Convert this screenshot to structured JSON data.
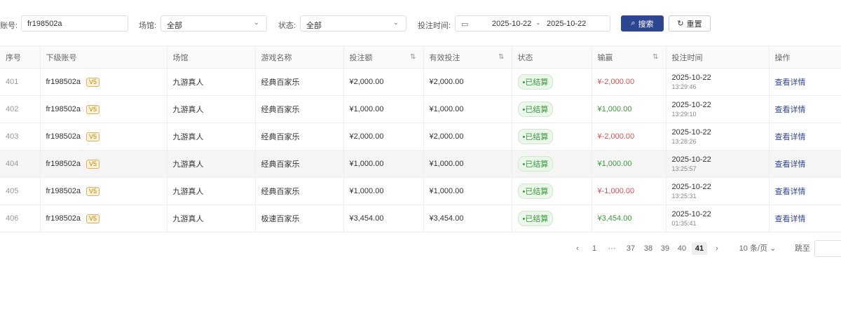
{
  "filters": {
    "account_label": "账号:",
    "account_value": "fr198502a",
    "venue_label": "场馆:",
    "venue_value": "全部",
    "status_label": "状态:",
    "status_value": "全部",
    "time_label": "投注时间:",
    "date_start": "2025-10-22",
    "date_sep": "-",
    "date_end": "2025-10-22",
    "search_label": "搜索",
    "reset_label": "重置"
  },
  "table": {
    "headers": [
      "序号",
      "下级账号",
      "场馆",
      "游戏名称",
      "投注额",
      "有效投注",
      "状态",
      "输赢",
      "投注时间",
      "操作"
    ],
    "rows": [
      {
        "idx": "401",
        "account": "fr198502a",
        "vip": "V5",
        "venue": "九游真人",
        "game": "经典百家乐",
        "bet": "¥2,000.00",
        "valid": "¥2,000.00",
        "status": "•已结算",
        "win": "¥-2,000.00",
        "win_sign": "neg",
        "date": "2025-10-22",
        "time": "13:29:46",
        "action": "查看详情"
      },
      {
        "idx": "402",
        "account": "fr198502a",
        "vip": "V5",
        "venue": "九游真人",
        "game": "经典百家乐",
        "bet": "¥1,000.00",
        "valid": "¥1,000.00",
        "status": "•已结算",
        "win": "¥1,000.00",
        "win_sign": "pos",
        "date": "2025-10-22",
        "time": "13:29:10",
        "action": "查看详情"
      },
      {
        "idx": "403",
        "account": "fr198502a",
        "vip": "V5",
        "venue": "九游真人",
        "game": "经典百家乐",
        "bet": "¥2,000.00",
        "valid": "¥2,000.00",
        "status": "•已结算",
        "win": "¥-2,000.00",
        "win_sign": "neg",
        "date": "2025-10-22",
        "time": "13:28:26",
        "action": "查看详情"
      },
      {
        "idx": "404",
        "account": "fr198502a",
        "vip": "V5",
        "venue": "九游真人",
        "game": "经典百家乐",
        "bet": "¥1,000.00",
        "valid": "¥1,000.00",
        "status": "•已结算",
        "win": "¥1,000.00",
        "win_sign": "pos",
        "date": "2025-10-22",
        "time": "13:25:57",
        "action": "查看详情"
      },
      {
        "idx": "405",
        "account": "fr198502a",
        "vip": "V5",
        "venue": "九游真人",
        "game": "经典百家乐",
        "bet": "¥1,000.00",
        "valid": "¥1,000.00",
        "status": "•已结算",
        "win": "¥-1,000.00",
        "win_sign": "neg",
        "date": "2025-10-22",
        "time": "13:25:31",
        "action": "查看详情"
      },
      {
        "idx": "406",
        "account": "fr198502a",
        "vip": "V5",
        "venue": "九游真人",
        "game": "极速百家乐",
        "bet": "¥3,454.00",
        "valid": "¥3,454.00",
        "status": "•已结算",
        "win": "¥3,454.00",
        "win_sign": "pos",
        "date": "2025-10-22",
        "time": "01:35:41",
        "action": "查看详情"
      }
    ]
  },
  "pagination": {
    "prev": "‹",
    "pages": [
      "1",
      "···",
      "37",
      "38",
      "39",
      "40",
      "41"
    ],
    "current": "41",
    "next": "›",
    "page_size": "10 条/页",
    "jump_label": "跳至"
  },
  "colors": {
    "primary": "#2d4690",
    "negative": "#d9534f",
    "positive": "#3a9a3a"
  }
}
